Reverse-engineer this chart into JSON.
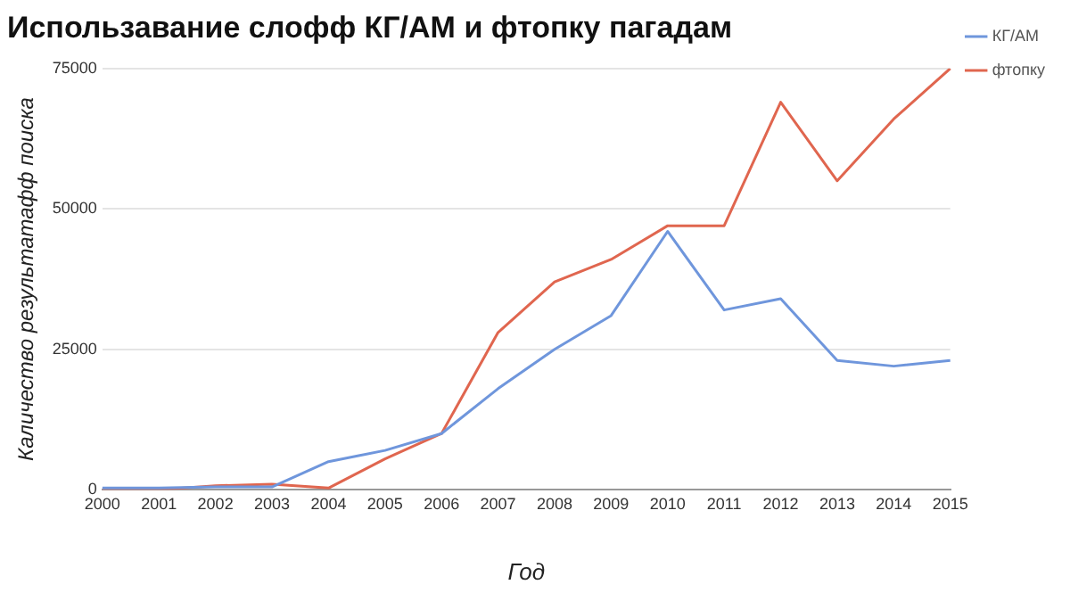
{
  "chart_data": {
    "type": "line",
    "title": "Использавание слофф КГ/АМ и фтопку пагадам",
    "xlabel": "Год",
    "ylabel": "Каличество результатафф поиска",
    "categories": [
      "2000",
      "2001",
      "2002",
      "2003",
      "2004",
      "2005",
      "2006",
      "2007",
      "2008",
      "2009",
      "2010",
      "2011",
      "2012",
      "2013",
      "2014",
      "2015"
    ],
    "series": [
      {
        "name": "КГ/АМ",
        "color": "#6f96dc",
        "values": [
          300,
          300,
          500,
          500,
          5000,
          7000,
          10000,
          18000,
          25000,
          31000,
          46000,
          32000,
          34000,
          23000,
          22000,
          23000
        ]
      },
      {
        "name": "фтопку",
        "color": "#e0664f",
        "values": [
          0,
          0,
          700,
          1000,
          300,
          5500,
          10000,
          28000,
          37000,
          41000,
          47000,
          47000,
          69000,
          55000,
          66000,
          75000
        ]
      }
    ],
    "ylim": [
      0,
      75000
    ],
    "yticks": [
      0,
      25000,
      50000,
      75000
    ],
    "grid": "y",
    "legend": "top right",
    "marker": "none",
    "line_style": "solid"
  }
}
